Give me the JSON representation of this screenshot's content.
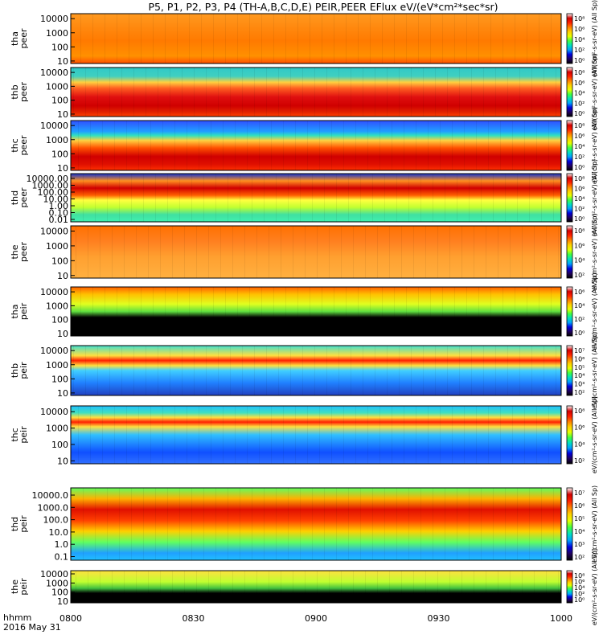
{
  "title": "P5, P1, P2, P3, P4 (TH-A,B,C,D,E) PEIR,PEER EFlux eV/(eV*cm²*sec*sr)",
  "time_axis": {
    "label_line1": "hhmm",
    "label_line2": "2016 May 31",
    "ticks": [
      "0800",
      "0830",
      "0900",
      "0930",
      "1000"
    ]
  },
  "chart_data": [
    {
      "type": "heatmap",
      "panel": "tha peer",
      "ylabel": [
        "tha",
        "peer"
      ],
      "y_ticks": [
        "10000",
        "1000",
        "100",
        "10"
      ],
      "z_ticks": [
        "10⁸",
        "10⁶",
        "10⁴",
        "10²",
        "10⁰"
      ],
      "unit_label": "eV/(cm²-s-sr-eV) (All Sp)",
      "x_range": [
        "0800",
        "1000"
      ],
      "y_scale": "log"
    },
    {
      "type": "heatmap",
      "panel": "thb peer",
      "ylabel": [
        "thb",
        "peer"
      ],
      "y_ticks": [
        "10000",
        "1000",
        "100",
        "10"
      ],
      "z_ticks": [
        "10⁸",
        "10⁶",
        "10⁴",
        "10²",
        "10⁰"
      ],
      "unit_label": "eV/(cm²-s-sr-eV) (All Sp)",
      "x_range": [
        "0800",
        "1000"
      ],
      "y_scale": "log"
    },
    {
      "type": "heatmap",
      "panel": "thc peer",
      "ylabel": [
        "thc",
        "peer"
      ],
      "y_ticks": [
        "10000",
        "1000",
        "100",
        "10"
      ],
      "z_ticks": [
        "10⁸",
        "10⁶",
        "10⁴",
        "10²",
        "10⁰"
      ],
      "unit_label": "eV/(cm²-s-sr-eV) (All Sp)",
      "x_range": [
        "0800",
        "1000"
      ],
      "y_scale": "log"
    },
    {
      "type": "heatmap",
      "panel": "thd peer",
      "ylabel": [
        "thd",
        "peer"
      ],
      "y_ticks": [
        "10000.00",
        "1000.00",
        "100.00",
        "10.00",
        "1.00",
        "0.10",
        "0.01"
      ],
      "z_ticks": [
        "10⁸",
        "10⁶",
        "10⁴",
        "10²",
        "10⁰"
      ],
      "unit_label": "eV/(cm²-s-sr-eV) (All Sp)",
      "x_range": [
        "0800",
        "1000"
      ],
      "y_scale": "log"
    },
    {
      "type": "heatmap",
      "panel": "the peer",
      "ylabel": [
        "the",
        "peer"
      ],
      "y_ticks": [
        "10000",
        "1000",
        "100",
        "10"
      ],
      "z_ticks": [
        "10⁸",
        "10⁶",
        "10⁴",
        "10²"
      ],
      "unit_label": "eV/(cm²-s-sr-eV) (All Sp)",
      "x_range": [
        "0800",
        "1000"
      ],
      "y_scale": "log"
    },
    {
      "type": "heatmap",
      "panel": "tha peir",
      "ylabel": [
        "tha",
        "peir"
      ],
      "y_ticks": [
        "10000",
        "1000",
        "100",
        "10"
      ],
      "z_ticks": [
        "10⁶",
        "10⁴",
        "10²",
        "10⁰"
      ],
      "unit_label": "eV/(cm²-s-sr-eV) (All Sp)",
      "x_range": [
        "0800",
        "1000"
      ],
      "y_scale": "log"
    },
    {
      "type": "heatmap",
      "panel": "thb peir",
      "ylabel": [
        "thb",
        "peir"
      ],
      "y_ticks": [
        "10000",
        "1000",
        "100",
        "10"
      ],
      "z_ticks": [
        "10⁷",
        "10⁶",
        "10⁵",
        "10⁴",
        "10³",
        "10²"
      ],
      "unit_label": "eV/(cm²-s-sr-eV) (All Sp)",
      "x_range": [
        "0800",
        "1000"
      ],
      "y_scale": "log"
    },
    {
      "type": "heatmap",
      "panel": "thc peir",
      "ylabel": [
        "thc",
        "peir"
      ],
      "y_ticks": [
        "10000",
        "1000",
        "100",
        "10"
      ],
      "z_ticks": [
        "10⁸",
        "10⁶",
        "10⁴",
        "10²"
      ],
      "unit_label": "eV/(cm²-s-sr-eV) (All Sp)",
      "x_range": [
        "0800",
        "1000"
      ],
      "y_scale": "log"
    },
    {
      "type": "heatmap",
      "panel": "thd peir",
      "ylabel": [
        "thd",
        "peir"
      ],
      "y_ticks": [
        "10000.0",
        "1000.0",
        "100.0",
        "10.0",
        "1.0",
        "0.1"
      ],
      "z_ticks": [
        "10⁷",
        "10⁶",
        "10⁵",
        "10⁴",
        "10³",
        "10²"
      ],
      "unit_label": "eV/(cm²-s-sr-eV) (All Sp)",
      "x_range": [
        "0800",
        "1000"
      ],
      "y_scale": "log"
    },
    {
      "type": "heatmap",
      "panel": "the peir",
      "ylabel": [
        "the",
        "peir"
      ],
      "y_ticks": [
        "10000",
        "1000",
        "100",
        "10"
      ],
      "z_ticks": [
        "10⁸",
        "10⁶",
        "10⁴",
        "10²",
        "10⁰"
      ],
      "unit_label": "eV/(cm²-s-sr-eV) (All Sp)",
      "x_range": [
        "0800",
        "1000"
      ],
      "y_scale": "log"
    }
  ],
  "colorbar_colors": [
    "#ffffff",
    "#d00000",
    "#ff2000",
    "#ff8000",
    "#ffd000",
    "#e8ff00",
    "#40ff40",
    "#00e0c0",
    "#00a0ff",
    "#0000e0",
    "#200060",
    "#000000"
  ]
}
